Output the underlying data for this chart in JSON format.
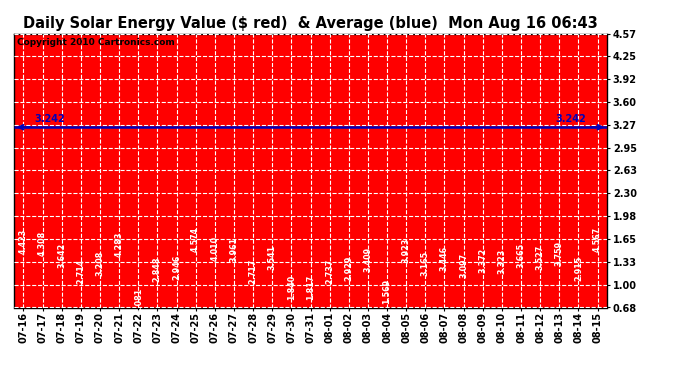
{
  "title": "Daily Solar Energy Value ($ red)  & Average (blue)  Mon Aug 16 06:43",
  "copyright": "Copyright 2010 Cartronics.com",
  "categories": [
    "07-16",
    "07-17",
    "07-18",
    "07-19",
    "07-20",
    "07-21",
    "07-22",
    "07-23",
    "07-24",
    "07-25",
    "07-26",
    "07-27",
    "07-28",
    "07-29",
    "07-30",
    "07-31",
    "08-01",
    "08-02",
    "08-03",
    "08-04",
    "08-05",
    "08-06",
    "08-07",
    "08-08",
    "08-09",
    "08-10",
    "08-11",
    "08-12",
    "08-13",
    "08-14",
    "08-15"
  ],
  "values": [
    4.423,
    4.308,
    3.642,
    2.714,
    3.208,
    4.283,
    1.081,
    2.848,
    2.946,
    4.574,
    4.01,
    3.961,
    2.717,
    3.541,
    1.84,
    1.817,
    2.737,
    2.929,
    3.409,
    1.569,
    3.923,
    3.165,
    3.446,
    3.097,
    3.372,
    3.323,
    3.665,
    3.527,
    3.759,
    2.915,
    4.567
  ],
  "average": 3.242,
  "bar_color": "#ff0000",
  "avg_line_color": "#0000bb",
  "background_color": "#ffffff",
  "plot_bg_color": "#ff0000",
  "ylim_min": 0.68,
  "ylim_max": 4.57,
  "yticks": [
    0.68,
    1.0,
    1.33,
    1.65,
    1.98,
    2.3,
    2.63,
    2.95,
    3.27,
    3.6,
    3.92,
    4.25,
    4.57
  ],
  "avg_label": "3.242",
  "title_fontsize": 10.5,
  "tick_fontsize": 7,
  "bar_label_fontsize": 5.8,
  "copyright_fontsize": 6.5
}
